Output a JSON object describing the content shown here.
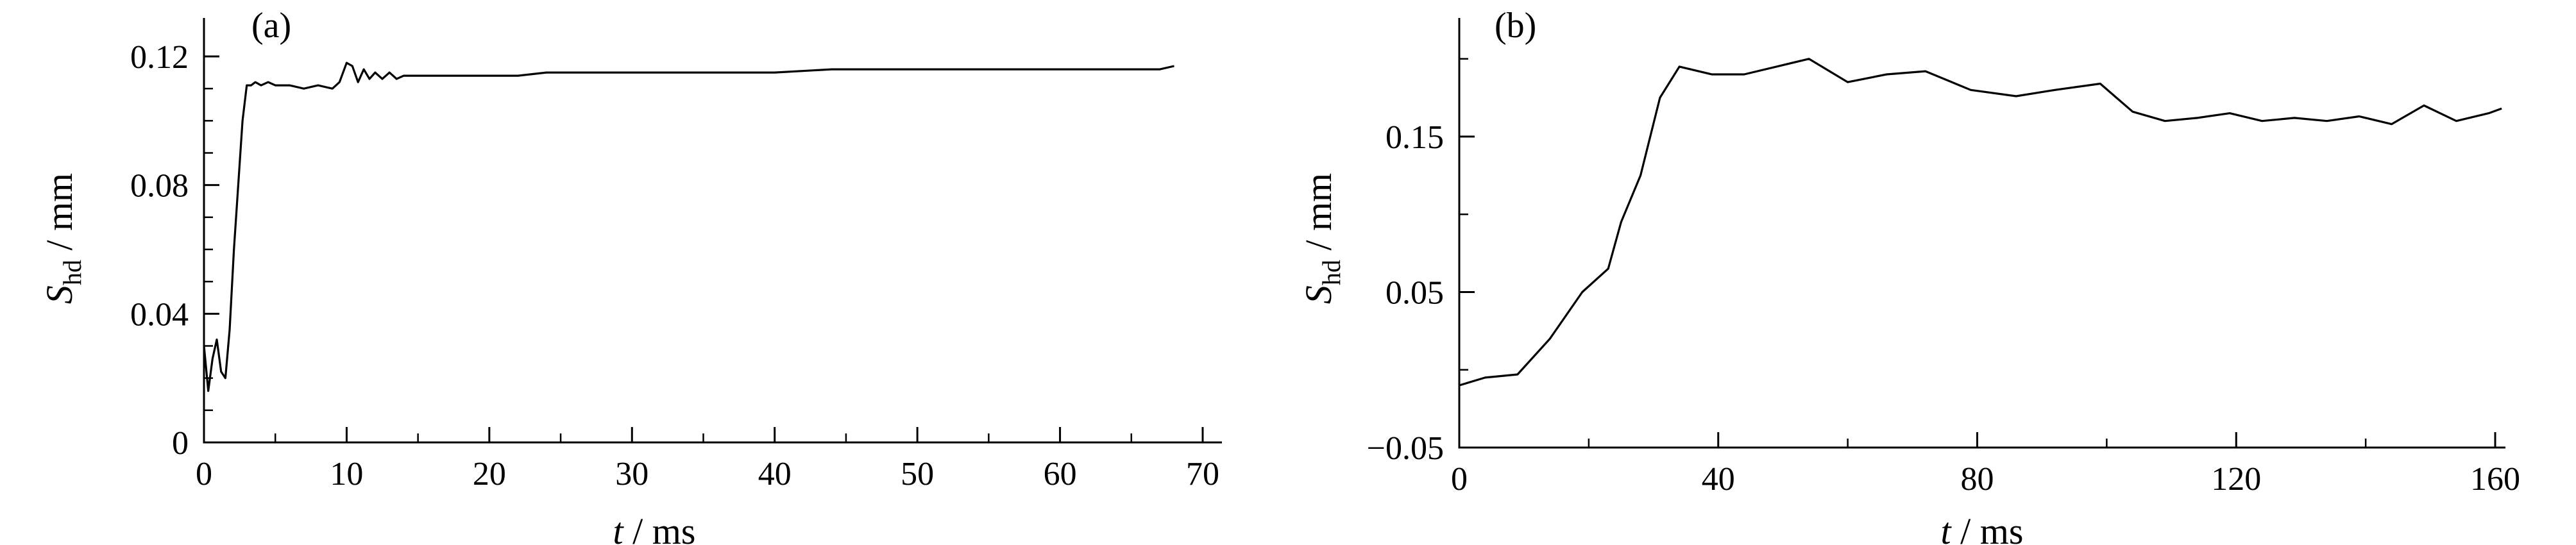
{
  "chart_data": [
    {
      "type": "line",
      "panel_label": "(a)",
      "xlabel": {
        "var": "t",
        "unit": " / ms"
      },
      "ylabel": {
        "var": "S",
        "sub": "hd",
        "unit": " / mm"
      },
      "xlim": [
        0,
        70
      ],
      "ylim": [
        0,
        0.12
      ],
      "xticks": [
        0,
        10,
        20,
        30,
        40,
        50,
        60,
        70
      ],
      "xtick_labels": [
        "0",
        "10",
        "20",
        "30",
        "40",
        "50",
        "60",
        "70"
      ],
      "yticks": [
        0,
        0.04,
        0.08,
        0.12
      ],
      "ytick_labels": [
        "0",
        "0.04",
        "0.08",
        "0.12"
      ],
      "grid": false,
      "series": [
        {
          "x": [
            0,
            0.3,
            0.6,
            0.9,
            1.2,
            1.5,
            1.8,
            2.1,
            2.4,
            2.7,
            3.0,
            3.3,
            3.6,
            4.0,
            4.5,
            5,
            6,
            7,
            8,
            9,
            9.5,
            10,
            10.4,
            10.8,
            11.2,
            11.6,
            12,
            12.5,
            13,
            13.5,
            14,
            15,
            16,
            17,
            18,
            19,
            20,
            22,
            24,
            26,
            28,
            30,
            32,
            34,
            36,
            38,
            40,
            44,
            48,
            52,
            56,
            60,
            64,
            67,
            68
          ],
          "y": [
            0.03,
            0.016,
            0.026,
            0.032,
            0.022,
            0.02,
            0.035,
            0.06,
            0.08,
            0.1,
            0.111,
            0.111,
            0.112,
            0.111,
            0.112,
            0.111,
            0.111,
            0.11,
            0.111,
            0.11,
            0.112,
            0.118,
            0.117,
            0.112,
            0.116,
            0.113,
            0.115,
            0.113,
            0.115,
            0.113,
            0.114,
            0.114,
            0.114,
            0.114,
            0.114,
            0.114,
            0.114,
            0.114,
            0.115,
            0.115,
            0.115,
            0.115,
            0.115,
            0.115,
            0.115,
            0.115,
            0.115,
            0.116,
            0.116,
            0.116,
            0.116,
            0.116,
            0.116,
            0.116,
            0.117
          ]
        }
      ]
    },
    {
      "type": "line",
      "panel_label": "(b)",
      "xlabel": {
        "var": "t",
        "unit": " / ms"
      },
      "ylabel": {
        "var": "S",
        "sub": "hd",
        "unit": " / mm"
      },
      "xlim": [
        0,
        160
      ],
      "ylim": [
        -0.05,
        0.25
      ],
      "xticks": [
        0,
        40,
        80,
        120,
        160
      ],
      "xtick_labels": [
        "0",
        "40",
        "80",
        "120",
        "160"
      ],
      "yticks": [
        -0.05,
        0.05,
        0.15
      ],
      "ytick_labels": [
        "−0.05",
        "0.05",
        "0.15"
      ],
      "grid": false,
      "series": [
        {
          "x": [
            0,
            4,
            9,
            14,
            19,
            23,
            25,
            28,
            31,
            34,
            39,
            44,
            49,
            54,
            60,
            66,
            72,
            79,
            86,
            92,
            99,
            104,
            109,
            114,
            119,
            124,
            129,
            134,
            139,
            144,
            149,
            154,
            159,
            161
          ],
          "y": [
            -0.01,
            -0.005,
            -0.003,
            0.02,
            0.05,
            0.065,
            0.095,
            0.125,
            0.175,
            0.195,
            0.19,
            0.19,
            0.195,
            0.2,
            0.185,
            0.19,
            0.192,
            0.18,
            0.176,
            0.18,
            0.184,
            0.166,
            0.16,
            0.162,
            0.165,
            0.16,
            0.162,
            0.16,
            0.163,
            0.158,
            0.17,
            0.16,
            0.165,
            0.168
          ]
        }
      ]
    }
  ]
}
